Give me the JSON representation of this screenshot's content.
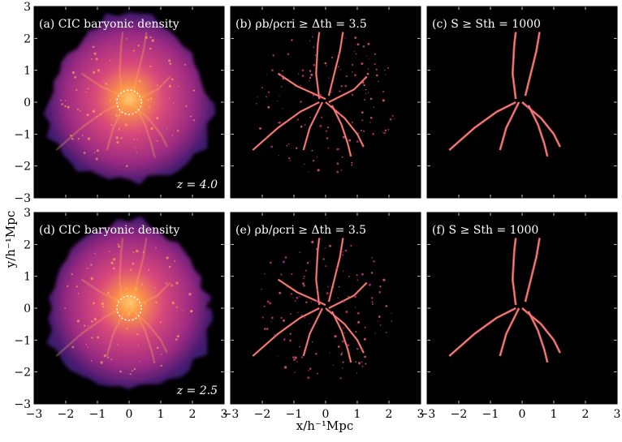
{
  "figure": {
    "ylabel": "y/h⁻¹Mpc",
    "xlabel": "x/h⁻¹Mpc",
    "tick_labels": [
      "−3",
      "−2",
      "−1",
      "0",
      "1",
      "2",
      "3"
    ],
    "xlim": [
      -3,
      3
    ],
    "ylim": [
      -3,
      3
    ],
    "colors": {
      "background": "#000000",
      "halo_edge": "#3d1a6e",
      "halo_mid": "#b4307a",
      "halo_core": "#ff9a45",
      "filament": "#e8557a",
      "filament_bright": "#ffb45a",
      "label": "#ffffff"
    },
    "panels": [
      {
        "id": "a",
        "label": "(a) CIC baryonic density",
        "redshift_label": "z = 4.0",
        "kind": "halo",
        "circle": true
      },
      {
        "id": "b",
        "label": "(b) ρb/ρcri ≥ Δth = 3.5",
        "kind": "filaments-dense"
      },
      {
        "id": "c",
        "label": "(c) S ≥ Sth = 1000",
        "kind": "filaments-sparse"
      },
      {
        "id": "d",
        "label": "(d) CIC baryonic density",
        "redshift_label": "z = 2.5",
        "kind": "halo",
        "circle": true
      },
      {
        "id": "e",
        "label": "(e) ρb/ρcri ≥ Δth = 3.5",
        "kind": "filaments-dense"
      },
      {
        "id": "f",
        "label": "(f) S ≥ Sth = 1000",
        "kind": "filaments-sparse"
      }
    ]
  }
}
